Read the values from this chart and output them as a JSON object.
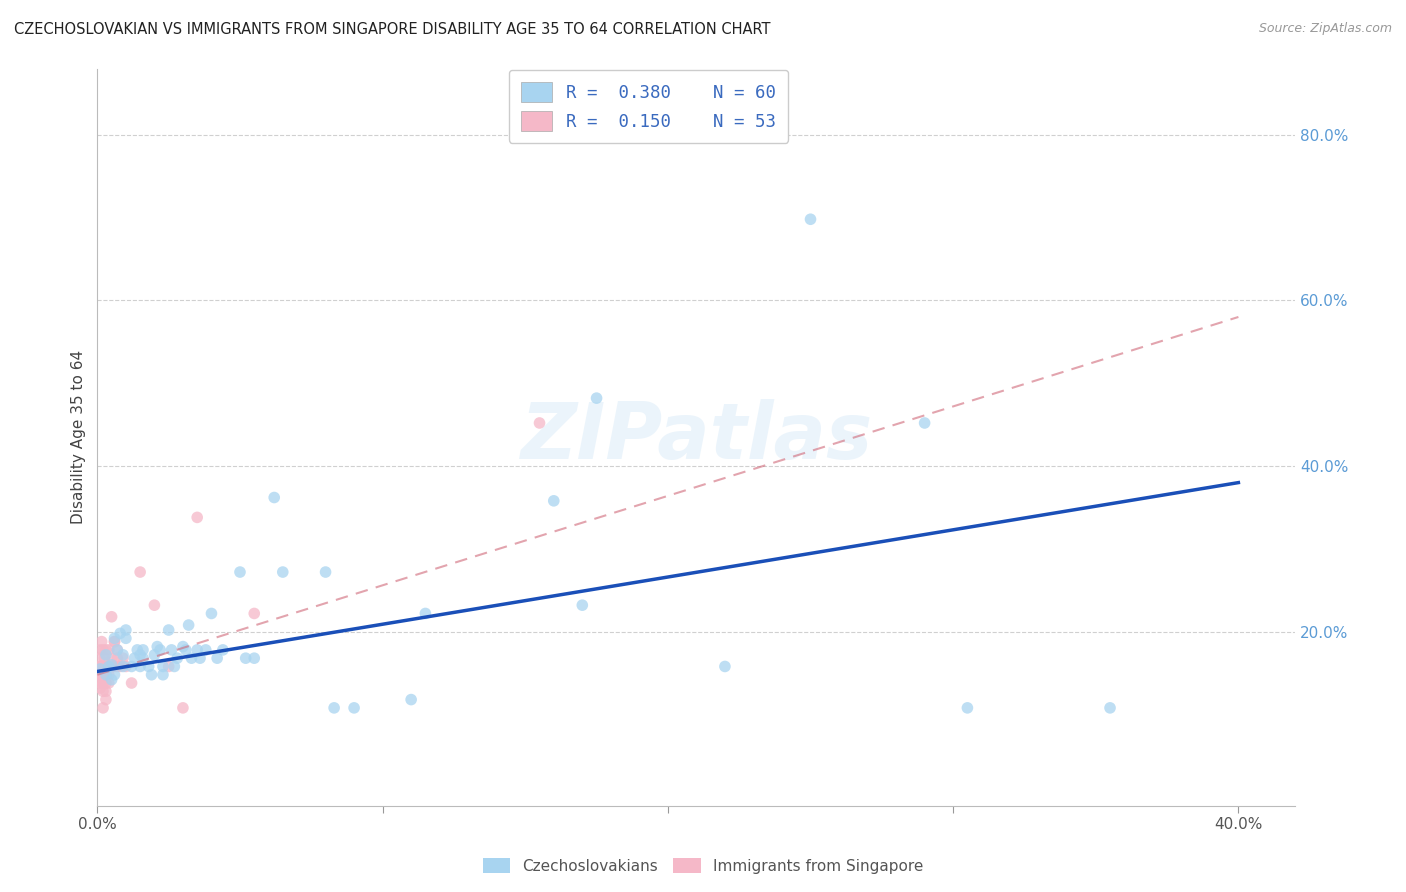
{
  "title": "CZECHOSLOVAKIAN VS IMMIGRANTS FROM SINGAPORE DISABILITY AGE 35 TO 64 CORRELATION CHART",
  "source": "Source: ZipAtlas.com",
  "ylabel": "Disability Age 35 to 64",
  "xlim": [
    0.0,
    0.42
  ],
  "ylim": [
    -0.01,
    0.88
  ],
  "xtick_positions": [
    0.0,
    0.1,
    0.2,
    0.3,
    0.4
  ],
  "xticklabels": [
    "0.0%",
    "",
    "",
    "",
    "40.0%"
  ],
  "ytick_positions": [
    0.0,
    0.2,
    0.4,
    0.6,
    0.8
  ],
  "yticklabels": [
    "",
    "20.0%",
    "40.0%",
    "60.0%",
    "80.0%"
  ],
  "grid_color": "#d0d0d0",
  "watermark": "ZIPatlas",
  "legend_r1": "R = 0.380",
  "legend_n1": "N = 60",
  "legend_r2": "R = 0.150",
  "legend_n2": "N = 53",
  "blue_color": "#a8d4f0",
  "blue_line_color": "#1a4fb8",
  "pink_color": "#f5b8c8",
  "pink_line_color": "#d06878",
  "scatter_size": 70,
  "blue_points": [
    [
      0.001,
      0.155
    ],
    [
      0.003,
      0.148
    ],
    [
      0.003,
      0.172
    ],
    [
      0.004,
      0.158
    ],
    [
      0.005,
      0.142
    ],
    [
      0.005,
      0.16
    ],
    [
      0.006,
      0.192
    ],
    [
      0.006,
      0.148
    ],
    [
      0.007,
      0.178
    ],
    [
      0.008,
      0.198
    ],
    [
      0.009,
      0.158
    ],
    [
      0.009,
      0.172
    ],
    [
      0.01,
      0.192
    ],
    [
      0.01,
      0.202
    ],
    [
      0.012,
      0.158
    ],
    [
      0.013,
      0.168
    ],
    [
      0.014,
      0.178
    ],
    [
      0.015,
      0.172
    ],
    [
      0.015,
      0.158
    ],
    [
      0.016,
      0.178
    ],
    [
      0.016,
      0.168
    ],
    [
      0.018,
      0.158
    ],
    [
      0.019,
      0.148
    ],
    [
      0.02,
      0.172
    ],
    [
      0.021,
      0.182
    ],
    [
      0.022,
      0.178
    ],
    [
      0.023,
      0.158
    ],
    [
      0.023,
      0.148
    ],
    [
      0.025,
      0.202
    ],
    [
      0.026,
      0.178
    ],
    [
      0.027,
      0.158
    ],
    [
      0.028,
      0.168
    ],
    [
      0.03,
      0.182
    ],
    [
      0.031,
      0.178
    ],
    [
      0.032,
      0.208
    ],
    [
      0.033,
      0.168
    ],
    [
      0.035,
      0.178
    ],
    [
      0.036,
      0.168
    ],
    [
      0.038,
      0.178
    ],
    [
      0.04,
      0.222
    ],
    [
      0.042,
      0.168
    ],
    [
      0.044,
      0.178
    ],
    [
      0.05,
      0.272
    ],
    [
      0.052,
      0.168
    ],
    [
      0.055,
      0.168
    ],
    [
      0.062,
      0.362
    ],
    [
      0.065,
      0.272
    ],
    [
      0.08,
      0.272
    ],
    [
      0.083,
      0.108
    ],
    [
      0.09,
      0.108
    ],
    [
      0.11,
      0.118
    ],
    [
      0.115,
      0.222
    ],
    [
      0.16,
      0.358
    ],
    [
      0.17,
      0.232
    ],
    [
      0.175,
      0.482
    ],
    [
      0.22,
      0.158
    ],
    [
      0.25,
      0.698
    ],
    [
      0.29,
      0.452
    ],
    [
      0.305,
      0.108
    ],
    [
      0.355,
      0.108
    ]
  ],
  "pink_points": [
    [
      0.0005,
      0.148
    ],
    [
      0.001,
      0.158
    ],
    [
      0.001,
      0.168
    ],
    [
      0.001,
      0.142
    ],
    [
      0.001,
      0.178
    ],
    [
      0.001,
      0.158
    ],
    [
      0.001,
      0.148
    ],
    [
      0.001,
      0.132
    ],
    [
      0.001,
      0.158
    ],
    [
      0.001,
      0.148
    ],
    [
      0.001,
      0.138
    ],
    [
      0.0015,
      0.188
    ],
    [
      0.0015,
      0.158
    ],
    [
      0.002,
      0.178
    ],
    [
      0.002,
      0.148
    ],
    [
      0.002,
      0.158
    ],
    [
      0.002,
      0.138
    ],
    [
      0.002,
      0.128
    ],
    [
      0.002,
      0.148
    ],
    [
      0.002,
      0.158
    ],
    [
      0.002,
      0.108
    ],
    [
      0.0025,
      0.168
    ],
    [
      0.003,
      0.158
    ],
    [
      0.003,
      0.148
    ],
    [
      0.003,
      0.138
    ],
    [
      0.003,
      0.178
    ],
    [
      0.003,
      0.148
    ],
    [
      0.003,
      0.128
    ],
    [
      0.003,
      0.118
    ],
    [
      0.004,
      0.158
    ],
    [
      0.004,
      0.148
    ],
    [
      0.004,
      0.138
    ],
    [
      0.004,
      0.178
    ],
    [
      0.005,
      0.218
    ],
    [
      0.005,
      0.168
    ],
    [
      0.005,
      0.158
    ],
    [
      0.006,
      0.188
    ],
    [
      0.006,
      0.188
    ],
    [
      0.006,
      0.158
    ],
    [
      0.007,
      0.168
    ],
    [
      0.007,
      0.178
    ],
    [
      0.007,
      0.158
    ],
    [
      0.008,
      0.158
    ],
    [
      0.009,
      0.168
    ],
    [
      0.01,
      0.158
    ],
    [
      0.012,
      0.138
    ],
    [
      0.015,
      0.272
    ],
    [
      0.02,
      0.232
    ],
    [
      0.025,
      0.158
    ],
    [
      0.03,
      0.108
    ],
    [
      0.035,
      0.338
    ],
    [
      0.055,
      0.222
    ],
    [
      0.155,
      0.452
    ]
  ],
  "blue_line_x0": 0.0,
  "blue_line_x1": 0.4,
  "blue_line_y0": 0.152,
  "blue_line_y1": 0.38,
  "pink_line_x0": 0.0,
  "pink_line_x1": 0.4,
  "pink_line_y0": 0.148,
  "pink_line_y1": 0.58,
  "background_color": "#ffffff"
}
